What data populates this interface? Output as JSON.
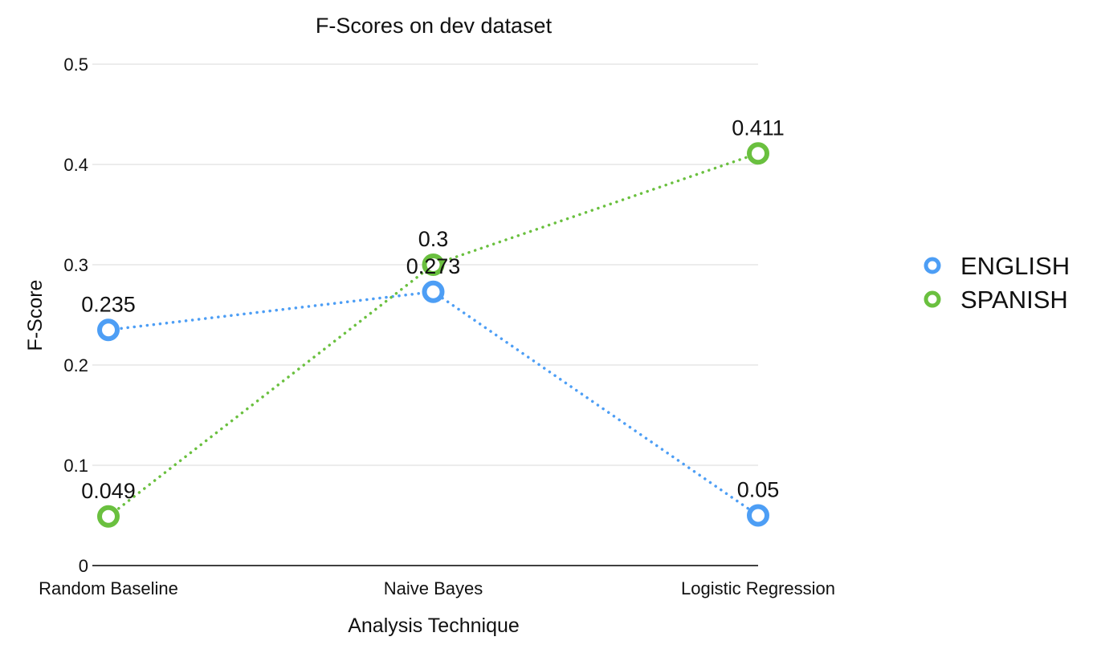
{
  "chart_data": {
    "type": "line",
    "title": "F-Scores on dev dataset",
    "xlabel": "Analysis Technique",
    "ylabel": "F-Score",
    "categories": [
      "Random Baseline",
      "Naive Bayes",
      "Logistic Regression"
    ],
    "ylim": [
      0,
      0.5
    ],
    "yticks": [
      "0",
      "0.1",
      "0.2",
      "0.3",
      "0.4",
      "0.5"
    ],
    "grid": true,
    "legend_position": "right",
    "series": [
      {
        "name": "ENGLISH",
        "color": "#4d9ef5",
        "values": [
          0.235,
          0.273,
          0.05
        ],
        "labels": [
          "0.235",
          "0.273",
          "0.05"
        ]
      },
      {
        "name": "SPANISH",
        "color": "#6ac03f",
        "values": [
          0.049,
          0.3,
          0.411
        ],
        "labels": [
          "0.049",
          "0.3",
          "0.411"
        ]
      }
    ]
  }
}
